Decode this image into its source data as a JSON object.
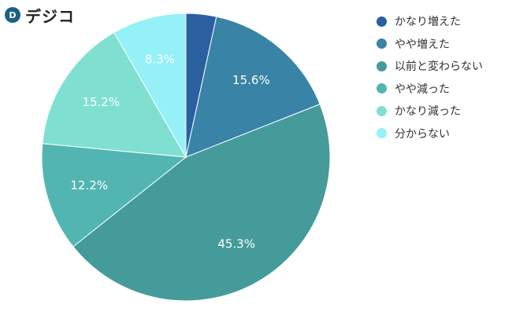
{
  "logo": {
    "mark": "D",
    "text": "デジコ"
  },
  "chart_data": {
    "type": "pie",
    "title": "",
    "slices": [
      {
        "label": "かなり増えた",
        "value": 3.4,
        "display": "",
        "color": "#2a5fa0"
      },
      {
        "label": "やや増えた",
        "value": 15.6,
        "display": "15.6%",
        "color": "#3983a6"
      },
      {
        "label": "以前と変わらない",
        "value": 45.3,
        "display": "45.3%",
        "color": "#449b9a"
      },
      {
        "label": "やや減った",
        "value": 12.2,
        "display": "12.2%",
        "color": "#53b5b1"
      },
      {
        "label": "かなり減った",
        "value": 15.2,
        "display": "15.2%",
        "color": "#7fe0d2"
      },
      {
        "label": "分からない",
        "value": 8.3,
        "display": "8.3%",
        "color": "#95f0f8"
      }
    ],
    "legend_position": "right"
  }
}
